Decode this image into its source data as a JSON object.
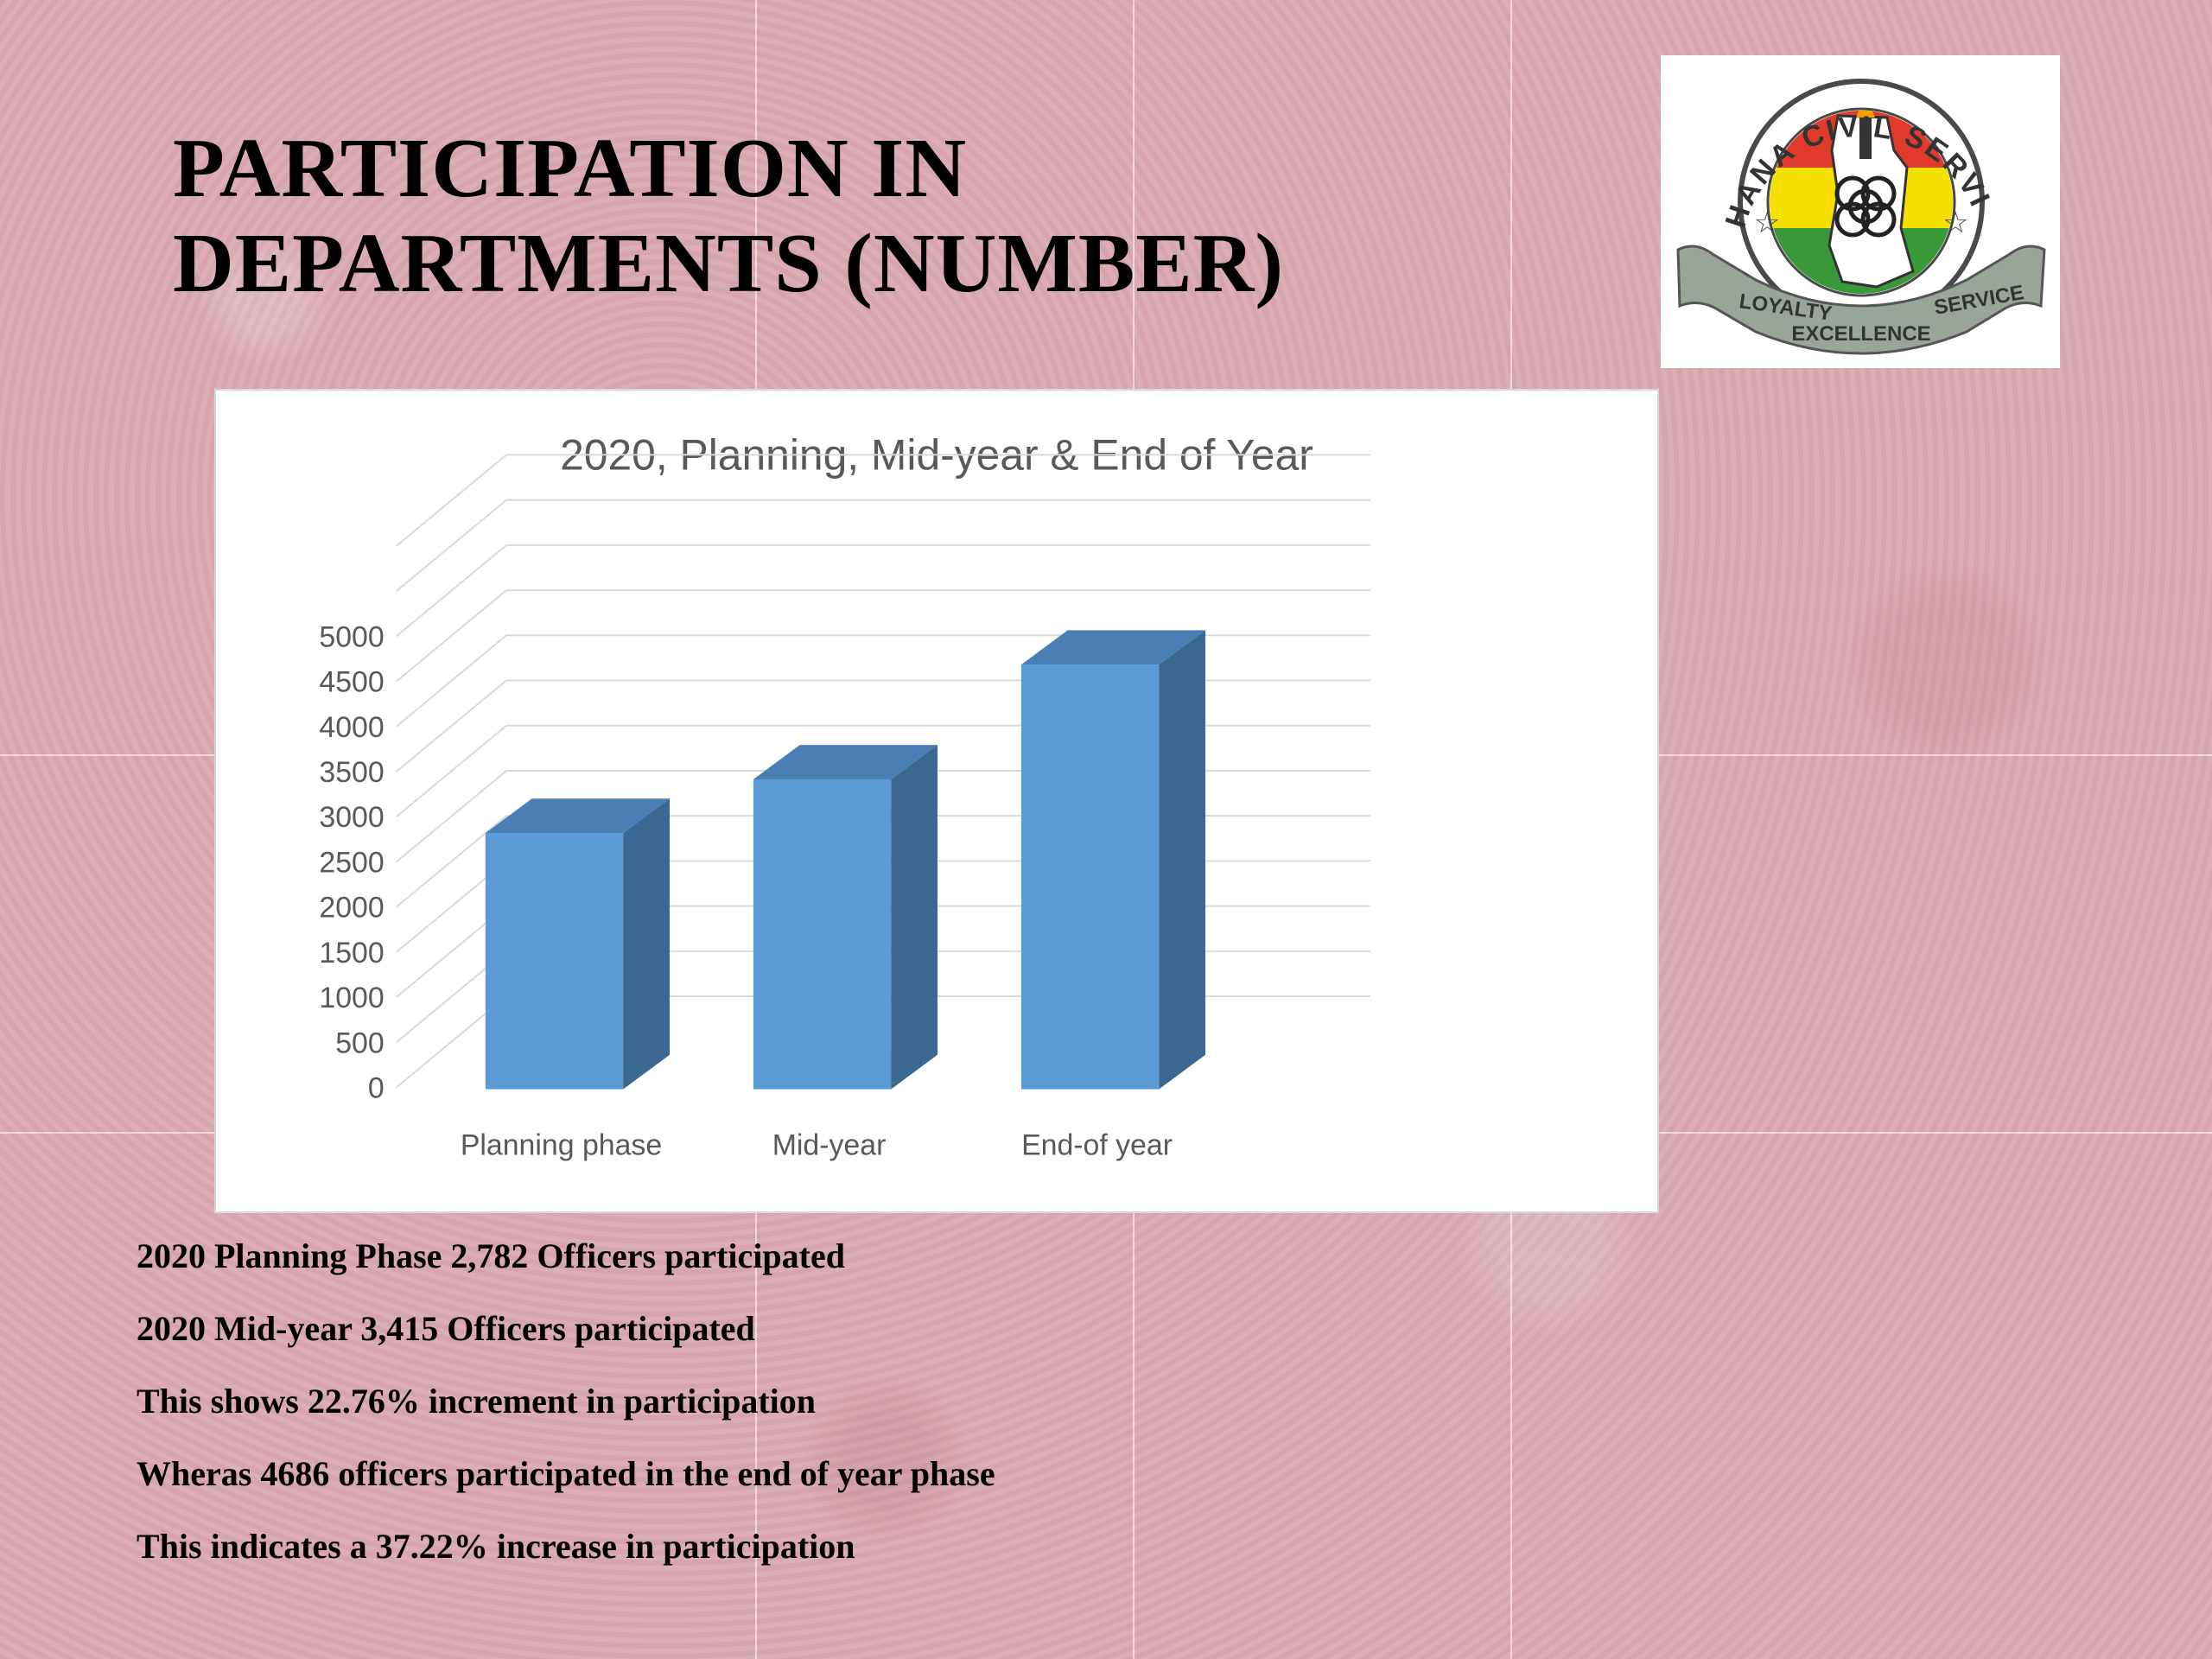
{
  "slide": {
    "title_line1": "PARTICIPATION IN",
    "title_line2": "DEPARTMENTS (NUMBER)"
  },
  "logo": {
    "top_text": "GHANA CIVIL SERVICE",
    "ribbon_left": "LOYALTY",
    "ribbon_middle": "EXCELLENCE",
    "ribbon_right": "SERVICE",
    "colors": {
      "red": "#e03a2a",
      "yellow": "#f5e000",
      "green": "#3a9a3a",
      "ribbon": "#9aa59a"
    }
  },
  "chart_data": {
    "type": "bar",
    "title": "2020, Planning, Mid-year & End of Year",
    "categories": [
      "Planning phase",
      "Mid-year",
      "End-of year"
    ],
    "values": [
      2782,
      3415,
      4686
    ],
    "yticks": [
      "0",
      "500",
      "1000",
      "1500",
      "2000",
      "2500",
      "3000",
      "3500",
      "4000",
      "4500",
      "5000"
    ],
    "ylim": [
      0,
      5000
    ],
    "grid": true,
    "legend": "none",
    "bar_color": "#5b9bd5",
    "bar_side_color": "#3a6890",
    "bar_top_color": "#4a7fb5"
  },
  "notes": [
    "2020 Planning Phase 2,782 Officers participated",
    "2020 Mid-year 3,415 Officers participated",
    "This shows 22.76% increment in participation",
    "Wheras 4686 officers participated in the end of year phase",
    "This indicates a 37.22% increase in participation"
  ]
}
